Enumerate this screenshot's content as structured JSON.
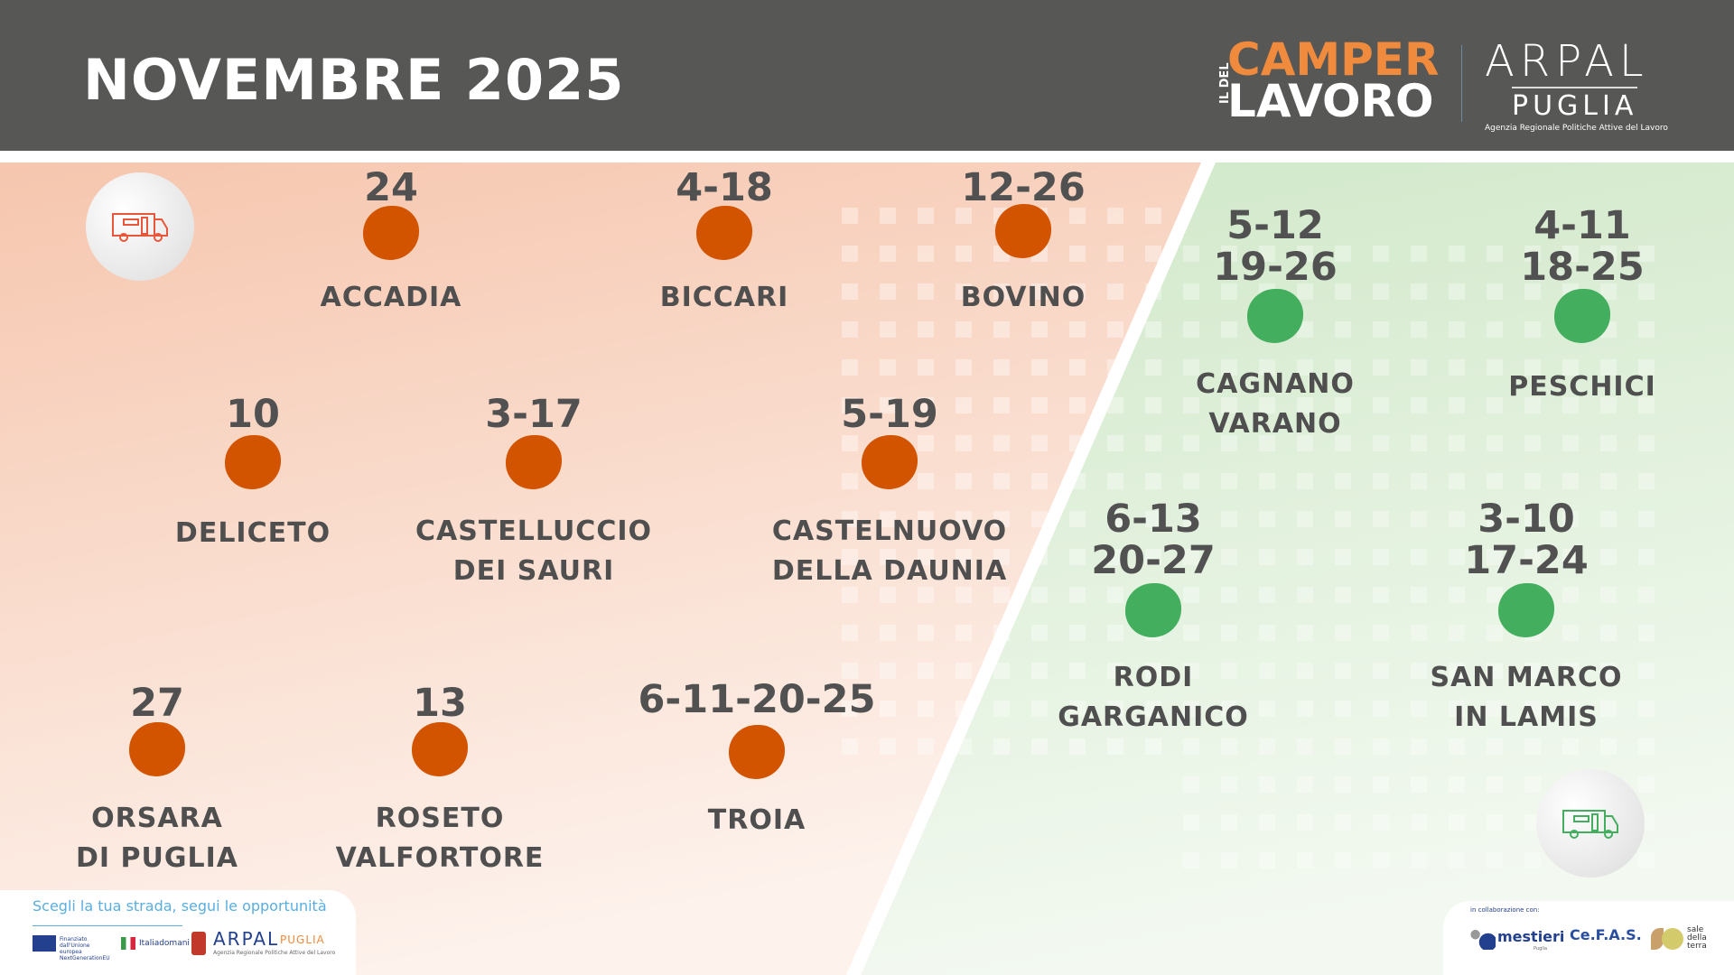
{
  "header": {
    "title": "NOVEMBRE 2025",
    "logo_camper": {
      "side": "IL DEL",
      "line1": "CAMPER",
      "line2": "LAVORO"
    },
    "logo_arpal": {
      "line1": "ARPAL",
      "line2": "PUGLIA",
      "sub": "Agenzia Regionale Politiche Attive del Lavoro"
    }
  },
  "colors": {
    "header": "#575756",
    "orange": "#d35400",
    "green": "#43ae5e",
    "text": "#515151",
    "peach": "#f6c9b3",
    "light_green": "#d5ebcf"
  },
  "locations": [
    {
      "name": "ACCADIA",
      "dates": "24",
      "zone": "orange"
    },
    {
      "name": "BICCARI",
      "dates": "4-18",
      "zone": "orange"
    },
    {
      "name": "BOVINO",
      "dates": "12-26",
      "zone": "orange"
    },
    {
      "name": "DELICETO",
      "dates": "10",
      "zone": "orange"
    },
    {
      "name": "CASTELLUCCIO\nDEI SAURI",
      "dates": "3-17",
      "zone": "orange"
    },
    {
      "name": "CASTELNUOVO\nDELLA DAUNIA",
      "dates": "5-19",
      "zone": "orange"
    },
    {
      "name": "ORSARA\nDI PUGLIA",
      "dates": "27",
      "zone": "orange"
    },
    {
      "name": "ROSETO\nVALFORTORE",
      "dates": "13",
      "zone": "orange"
    },
    {
      "name": "TROIA",
      "dates": "6-11-20-25",
      "zone": "orange"
    },
    {
      "name": "CAGNANO\nVARANO",
      "dates": "5-12\n19-26",
      "zone": "green"
    },
    {
      "name": "PESCHICI",
      "dates": "4-11\n18-25",
      "zone": "green"
    },
    {
      "name": "RODI\nGARGANICO",
      "dates": "6-13\n20-27",
      "zone": "green"
    },
    {
      "name": "SAN MARCO\nIN LAMIS",
      "dates": "3-10\n17-24",
      "zone": "green"
    }
  ],
  "footer_left": {
    "slogan": "Scegli la tua strada, segui le opportunità",
    "eu": "Finanziato dall'Unione europea NextGenerationEU",
    "italia": "Italiadomani",
    "arpal": "ARPAL",
    "puglia": "PUGLIA",
    "arpal_sub": "Agenzia Regionale Politiche Attive del Lavoro"
  },
  "footer_right": {
    "label": "in collaborazione con:",
    "partners": [
      "mestieri",
      "Ce.F.A.S.",
      "sale della terra"
    ],
    "mestieri_sub": "Puglia"
  },
  "icons": [
    "camper-van-icon-orange",
    "camper-van-icon-green"
  ]
}
